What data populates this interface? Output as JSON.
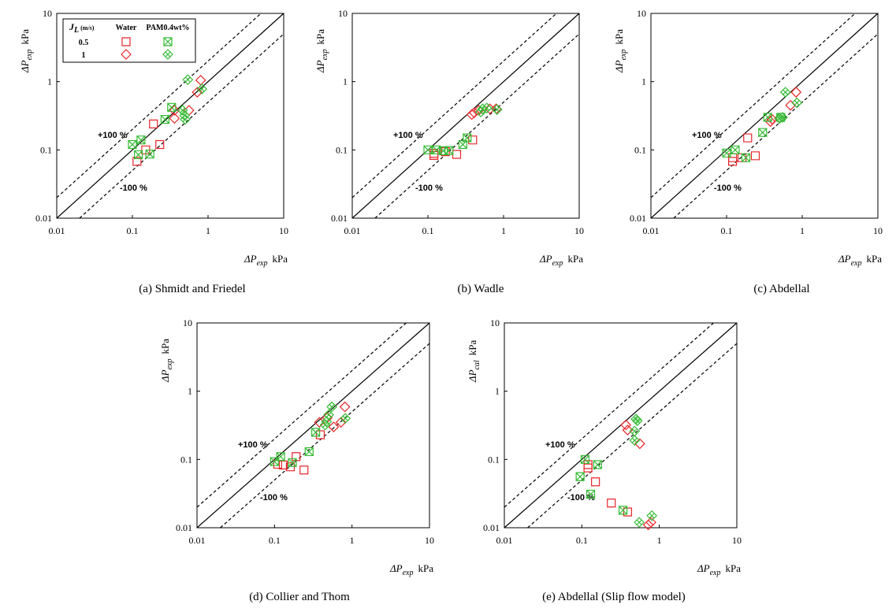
{
  "chart_data": [
    {
      "type": "scatter",
      "caption": "(a) Shmidt and Friedel",
      "x_label": {
        "symbol": "ΔP",
        "sub": "exp",
        "unit": "kPa"
      },
      "y_label": {
        "symbol": "ΔP",
        "sub": "exp",
        "unit": "kPa"
      },
      "xlim": [
        0.01,
        10
      ],
      "ylim": [
        0.01,
        10
      ],
      "xticks": [
        0.01,
        0.1,
        1,
        10
      ],
      "yticks": [
        0.01,
        0.1,
        1,
        10
      ],
      "log_x": true,
      "log_y": true,
      "reference_lines": [
        {
          "slope": 1,
          "dashed": false
        },
        {
          "slope": 2,
          "dashed": true,
          "label": "+100 %"
        },
        {
          "slope": 0.5,
          "dashed": true,
          "label": "-100 %"
        }
      ],
      "legend": {
        "corner": "top-left",
        "title": "J",
        "title_sub": "L",
        "title_unit": "(m/s)",
        "columns": [
          "Water",
          "PAM0.4wt%"
        ],
        "rows": [
          "0.5",
          "1"
        ]
      },
      "series": [
        {
          "marker": "square",
          "color": "#e8262a",
          "x": [
            0.19,
            0.15,
            0.23,
            0.115
          ],
          "y": [
            0.24,
            0.1,
            0.12,
            0.068
          ]
        },
        {
          "marker": "diamond",
          "color": "#e8262a",
          "x": [
            0.8,
            0.72,
            0.36,
            0.56,
            0.36
          ],
          "y": [
            1.05,
            0.7,
            0.29,
            0.38,
            0.38
          ]
        },
        {
          "marker": "square-x",
          "color": "#33bb33",
          "x": [
            0.1,
            0.13,
            0.12,
            0.17,
            0.27,
            0.33
          ],
          "y": [
            0.12,
            0.14,
            0.085,
            0.087,
            0.28,
            0.42
          ]
        },
        {
          "marker": "diamond-x",
          "color": "#33bb33",
          "x": [
            0.54,
            0.83,
            0.46,
            0.49,
            0.5
          ],
          "y": [
            1.07,
            0.78,
            0.38,
            0.32,
            0.28
          ]
        }
      ]
    },
    {
      "type": "scatter",
      "caption": "(b) Wadle",
      "x_label": {
        "symbol": "ΔP",
        "sub": "exp",
        "unit": "kPa"
      },
      "y_label": {
        "symbol": "ΔP",
        "sub": "exp",
        "unit": "kPa"
      },
      "xlim": [
        0.01,
        10
      ],
      "ylim": [
        0.01,
        10
      ],
      "xticks": [
        0.01,
        0.1,
        1,
        10
      ],
      "yticks": [
        0.01,
        0.1,
        1,
        10
      ],
      "log_x": true,
      "log_y": true,
      "reference_lines": [
        {
          "slope": 1,
          "dashed": false
        },
        {
          "slope": 2,
          "dashed": true,
          "label": "+100 %"
        },
        {
          "slope": 0.5,
          "dashed": true,
          "label": "-100 %"
        }
      ],
      "series": [
        {
          "marker": "square",
          "color": "#e8262a",
          "x": [
            0.12,
            0.12,
            0.17,
            0.24,
            0.39
          ],
          "y": [
            0.083,
            0.089,
            0.094,
            0.086,
            0.14
          ]
        },
        {
          "marker": "diamond",
          "color": "#e8262a",
          "x": [
            0.41,
            0.47,
            0.66,
            0.8,
            0.38
          ],
          "y": [
            0.35,
            0.38,
            0.4,
            0.4,
            0.33
          ]
        },
        {
          "marker": "square-x",
          "color": "#33bb33",
          "x": [
            0.1,
            0.13,
            0.16,
            0.19,
            0.29,
            0.33
          ],
          "y": [
            0.1,
            0.1,
            0.097,
            0.098,
            0.12,
            0.15
          ]
        },
        {
          "marker": "diamond-x",
          "color": "#33bb33",
          "x": [
            0.5,
            0.53,
            0.6,
            0.82
          ],
          "y": [
            0.36,
            0.4,
            0.41,
            0.39
          ]
        }
      ]
    },
    {
      "type": "scatter",
      "caption": "(c) Abdellal",
      "x_label": {
        "symbol": "ΔP",
        "sub": "exp",
        "unit": "kPa"
      },
      "y_label": {
        "symbol": "ΔP",
        "sub": "exp",
        "unit": "kPa"
      },
      "xlim": [
        0.01,
        10
      ],
      "ylim": [
        0.01,
        10
      ],
      "xticks": [
        0.01,
        0.1,
        1,
        10
      ],
      "yticks": [
        0.01,
        0.1,
        1,
        10
      ],
      "log_x": true,
      "log_y": true,
      "reference_lines": [
        {
          "slope": 1,
          "dashed": false
        },
        {
          "slope": 2,
          "dashed": true,
          "label": "+100 %"
        },
        {
          "slope": 0.5,
          "dashed": true,
          "label": "-100 %"
        }
      ],
      "series": [
        {
          "marker": "square",
          "color": "#e8262a",
          "x": [
            0.12,
            0.12,
            0.19,
            0.24,
            0.16
          ],
          "y": [
            0.068,
            0.077,
            0.15,
            0.082,
            0.077
          ]
        },
        {
          "marker": "diamond",
          "color": "#e8262a",
          "x": [
            0.83,
            0.7,
            0.5,
            0.38,
            0.4
          ],
          "y": [
            0.7,
            0.45,
            0.29,
            0.26,
            0.28
          ]
        },
        {
          "marker": "square-x",
          "color": "#33bb33",
          "x": [
            0.1,
            0.13,
            0.18,
            0.3,
            0.35,
            0.52
          ],
          "y": [
            0.09,
            0.1,
            0.077,
            0.18,
            0.3,
            0.3
          ]
        },
        {
          "marker": "diamond-x",
          "color": "#33bb33",
          "x": [
            0.6,
            0.85,
            0.5,
            0.55
          ],
          "y": [
            0.7,
            0.49,
            0.29,
            0.3
          ]
        }
      ]
    },
    {
      "type": "scatter",
      "caption": "(d) Collier and Thom",
      "x_label": {
        "symbol": "ΔP",
        "sub": "exp",
        "unit": "kPa"
      },
      "y_label": {
        "symbol": "ΔP",
        "sub": "exp",
        "unit": "kPa"
      },
      "xlim": [
        0.01,
        10
      ],
      "ylim": [
        0.01,
        10
      ],
      "xticks": [
        0.01,
        0.1,
        1,
        10
      ],
      "yticks": [
        0.01,
        0.1,
        1,
        10
      ],
      "log_x": true,
      "log_y": true,
      "reference_lines": [
        {
          "slope": 1,
          "dashed": false
        },
        {
          "slope": 2,
          "dashed": true,
          "label": "+100 %"
        },
        {
          "slope": 0.5,
          "dashed": true,
          "label": "-100 %"
        }
      ],
      "series": [
        {
          "marker": "square",
          "color": "#e8262a",
          "x": [
            0.11,
            0.13,
            0.16,
            0.19,
            0.24,
            0.39
          ],
          "y": [
            0.085,
            0.083,
            0.078,
            0.11,
            0.07,
            0.23
          ]
        },
        {
          "marker": "diamond",
          "color": "#e8262a",
          "x": [
            0.81,
            0.72,
            0.58,
            0.38,
            0.48
          ],
          "y": [
            0.59,
            0.35,
            0.3,
            0.35,
            0.41
          ]
        },
        {
          "marker": "square-x",
          "color": "#33bb33",
          "x": [
            0.1,
            0.12,
            0.17,
            0.28,
            0.34
          ],
          "y": [
            0.093,
            0.11,
            0.09,
            0.13,
            0.25
          ]
        },
        {
          "marker": "diamond-x",
          "color": "#33bb33",
          "x": [
            0.55,
            0.82,
            0.5,
            0.47,
            0.45
          ],
          "y": [
            0.59,
            0.4,
            0.45,
            0.36,
            0.32
          ]
        }
      ]
    },
    {
      "type": "scatter",
      "caption": "(e) Abdellal (Slip flow model)",
      "x_label": {
        "symbol": "ΔP",
        "sub": "exp",
        "unit": "kPa"
      },
      "y_label": {
        "symbol": "ΔP",
        "sub": "cal",
        "unit": "kPa"
      },
      "xlim": [
        0.01,
        10
      ],
      "ylim": [
        0.01,
        10
      ],
      "xticks": [
        0.01,
        0.1,
        1,
        10
      ],
      "yticks": [
        0.01,
        0.1,
        1,
        10
      ],
      "log_x": true,
      "log_y": true,
      "reference_lines": [
        {
          "slope": 1,
          "dashed": false
        },
        {
          "slope": 2,
          "dashed": true,
          "label": "+100 %"
        },
        {
          "slope": 0.5,
          "dashed": true,
          "label": "-100 %"
        }
      ],
      "series": [
        {
          "marker": "square",
          "color": "#e8262a",
          "x": [
            0.12,
            0.12,
            0.15,
            0.24,
            0.39
          ],
          "y": [
            0.084,
            0.075,
            0.047,
            0.023,
            0.017
          ]
        },
        {
          "marker": "diamond",
          "color": "#e8262a",
          "x": [
            0.37,
            0.39,
            0.56,
            0.72,
            0.78
          ],
          "y": [
            0.32,
            0.27,
            0.17,
            0.011,
            0.012
          ]
        },
        {
          "marker": "square-x",
          "color": "#33bb33",
          "x": [
            0.11,
            0.095,
            0.16,
            0.13,
            0.34
          ],
          "y": [
            0.1,
            0.056,
            0.084,
            0.031,
            0.018
          ]
        },
        {
          "marker": "diamond-x",
          "color": "#33bb33",
          "x": [
            0.5,
            0.52,
            0.48,
            0.48,
            0.55,
            0.8
          ],
          "y": [
            0.39,
            0.37,
            0.26,
            0.19,
            0.012,
            0.015
          ]
        }
      ]
    }
  ]
}
